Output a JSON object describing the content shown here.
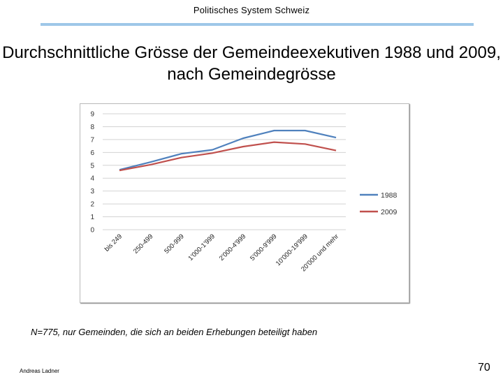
{
  "header": {
    "title": "Politisches System Schweiz",
    "rule_color": "#9ec7e8"
  },
  "slide": {
    "title": "Durchschnittliche Grösse der Gemeindeexekutiven 1988 und 2009, nach Gemeindegrösse"
  },
  "chart_data": {
    "type": "line",
    "categories": [
      "bis 249",
      "250-499",
      "500-999",
      "1'000-1'999",
      "2'000-4'999",
      "5'000-9'999",
      "10'000-19'999",
      "20'000 und mehr"
    ],
    "series": [
      {
        "name": "1988",
        "color": "#4f81bd",
        "values": [
          4.65,
          5.25,
          5.9,
          6.2,
          7.1,
          7.7,
          7.7,
          7.15
        ]
      },
      {
        "name": "2009",
        "color": "#c0504d",
        "values": [
          4.6,
          5.05,
          5.6,
          5.95,
          6.45,
          6.8,
          6.65,
          6.15
        ]
      }
    ],
    "y_ticks": [
      "0",
      "1",
      "2",
      "3",
      "4",
      "5",
      "6",
      "7",
      "8",
      "9"
    ],
    "ylim": [
      0,
      9
    ],
    "grid": true,
    "legend_position": "right"
  },
  "footer": {
    "note": "N=775, nur Gemeinden, die sich an beiden Erhebungen beteiligt haben",
    "author": "Andreas Ladner",
    "page": "70"
  }
}
